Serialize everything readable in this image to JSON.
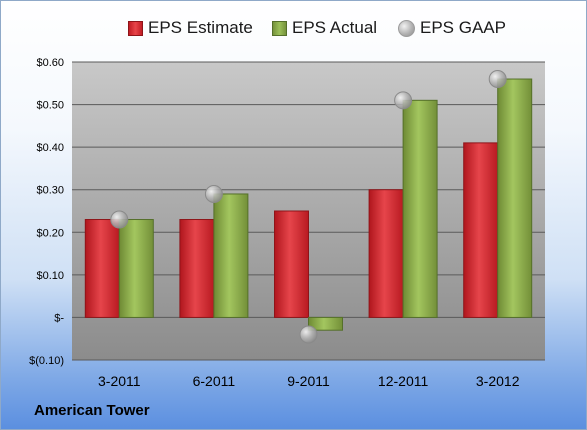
{
  "chart_data": {
    "type": "bar",
    "categories": [
      "3-2011",
      "6-2011",
      "9-2011",
      "12-2011",
      "3-2012"
    ],
    "series": [
      {
        "name": "EPS Estimate",
        "kind": "bar",
        "color": "#c8232a",
        "values": [
          0.23,
          0.23,
          0.25,
          0.3,
          0.41
        ]
      },
      {
        "name": "EPS Actual",
        "kind": "bar",
        "color": "#8db04a",
        "values": [
          0.23,
          0.29,
          -0.03,
          0.51,
          0.56
        ]
      },
      {
        "name": "EPS GAAP",
        "kind": "marker",
        "color": "#b3b3b3",
        "values": [
          0.23,
          0.29,
          -0.04,
          0.51,
          0.56
        ]
      }
    ],
    "y_ticks": [
      -0.1,
      0,
      0.1,
      0.2,
      0.3,
      0.4,
      0.5,
      0.6
    ],
    "y_tick_labels": [
      "$(0.10)",
      "$-",
      "$0.10",
      "$0.20",
      "$0.30",
      "$0.40",
      "$0.50",
      "$0.60"
    ],
    "ylim": [
      -0.1,
      0.6
    ],
    "grid": true,
    "legend_position": "top"
  },
  "footer": {
    "company": "American Tower"
  }
}
